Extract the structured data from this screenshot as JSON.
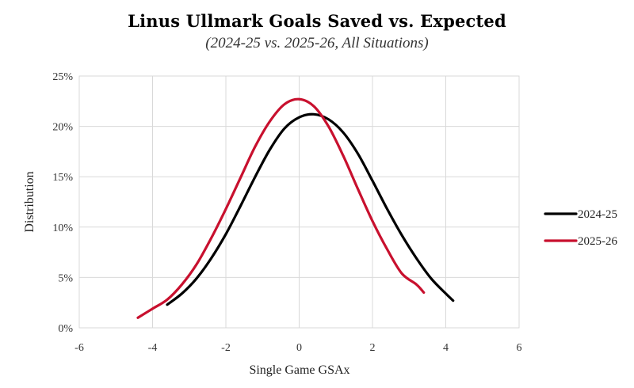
{
  "chart_data": {
    "type": "line",
    "title": "Linus Ullmark Goals Saved vs. Expected",
    "subtitle": "(2024-25 vs. 2025-26, All Situations)",
    "xlabel": "Single Game GSAx",
    "ylabel": "Distribution",
    "xlim": [
      -6,
      6
    ],
    "ylim": [
      0,
      0.25
    ],
    "x_ticks": [
      -6,
      -4,
      -2,
      0,
      2,
      4,
      6
    ],
    "x_tick_labels": [
      "-6",
      "-4",
      "-2",
      "0",
      "2",
      "4",
      "6"
    ],
    "y_ticks": [
      0,
      0.05,
      0.1,
      0.15,
      0.2,
      0.25
    ],
    "y_tick_labels": [
      "0%",
      "5%",
      "10%",
      "15%",
      "20%",
      "25%"
    ],
    "grid": true,
    "legend_position": "right",
    "series": [
      {
        "name": "2024-25",
        "color": "#000000",
        "x": [
          -3.6,
          -3.2,
          -2.8,
          -2.4,
          -2.0,
          -1.6,
          -1.2,
          -0.8,
          -0.4,
          0.0,
          0.4,
          0.8,
          1.2,
          1.6,
          2.0,
          2.4,
          2.8,
          3.2,
          3.6,
          4.0,
          4.2
        ],
        "y": [
          0.023,
          0.034,
          0.049,
          0.069,
          0.093,
          0.121,
          0.15,
          0.177,
          0.198,
          0.209,
          0.212,
          0.207,
          0.194,
          0.173,
          0.146,
          0.118,
          0.092,
          0.069,
          0.049,
          0.034,
          0.027
        ]
      },
      {
        "name": "2025-26",
        "color": "#c8102e",
        "x": [
          -4.4,
          -4.0,
          -3.6,
          -3.2,
          -2.8,
          -2.4,
          -2.0,
          -1.6,
          -1.2,
          -0.8,
          -0.4,
          0.0,
          0.4,
          0.8,
          1.2,
          1.6,
          2.0,
          2.4,
          2.8,
          3.2,
          3.4
        ],
        "y": [
          0.01,
          0.019,
          0.028,
          0.043,
          0.063,
          0.089,
          0.118,
          0.149,
          0.18,
          0.205,
          0.222,
          0.227,
          0.22,
          0.2,
          0.171,
          0.138,
          0.106,
          0.078,
          0.054,
          0.043,
          0.035
        ]
      }
    ]
  }
}
